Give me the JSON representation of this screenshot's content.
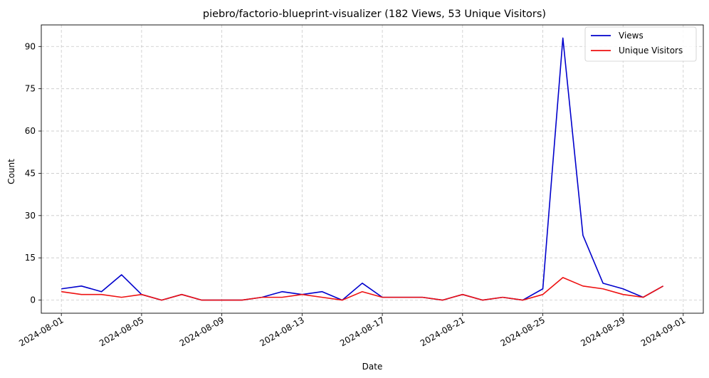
{
  "chart_data": {
    "type": "line",
    "title": "piebro/factorio-blueprint-visualizer (182 Views, 53 Unique Visitors)",
    "xlabel": "Date",
    "ylabel": "Count",
    "x": [
      "2024-08-01",
      "2024-08-02",
      "2024-08-03",
      "2024-08-04",
      "2024-08-05",
      "2024-08-06",
      "2024-08-07",
      "2024-08-08",
      "2024-08-09",
      "2024-08-10",
      "2024-08-11",
      "2024-08-12",
      "2024-08-13",
      "2024-08-14",
      "2024-08-15",
      "2024-08-16",
      "2024-08-17",
      "2024-08-18",
      "2024-08-19",
      "2024-08-20",
      "2024-08-21",
      "2024-08-22",
      "2024-08-23",
      "2024-08-24",
      "2024-08-25",
      "2024-08-26",
      "2024-08-27",
      "2024-08-28",
      "2024-08-29",
      "2024-08-30",
      "2024-08-31"
    ],
    "series": [
      {
        "name": "Views",
        "color": "#0000cc",
        "values": [
          4,
          5,
          3,
          9,
          2,
          0,
          2,
          0,
          0,
          0,
          1,
          3,
          2,
          3,
          0,
          6,
          1,
          1,
          1,
          0,
          2,
          0,
          1,
          0,
          4,
          93,
          23,
          6,
          4,
          1,
          5
        ]
      },
      {
        "name": "Unique Visitors",
        "color": "#ee1111",
        "values": [
          3,
          2,
          2,
          1,
          2,
          0,
          2,
          0,
          0,
          0,
          1,
          1,
          2,
          1,
          0,
          3,
          1,
          1,
          1,
          0,
          2,
          0,
          1,
          0,
          2,
          8,
          5,
          4,
          2,
          1,
          5
        ]
      }
    ],
    "x_ticks": [
      "2024-08-01",
      "2024-08-05",
      "2024-08-09",
      "2024-08-13",
      "2024-08-17",
      "2024-08-21",
      "2024-08-25",
      "2024-08-29",
      "2024-09-01"
    ],
    "y_ticks": [
      0,
      15,
      30,
      45,
      60,
      75,
      90
    ],
    "xlim": [
      "2024-07-31",
      "2024-09-02"
    ],
    "ylim": [
      -4.65,
      97.65
    ],
    "grid": true,
    "legend_position": "top-right"
  }
}
